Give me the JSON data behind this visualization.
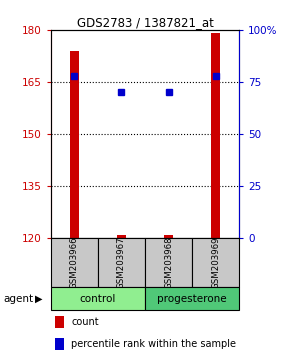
{
  "title": "GDS2783 / 1387821_at",
  "samples": [
    "GSM203966",
    "GSM203967",
    "GSM203968",
    "GSM203969"
  ],
  "count_values": [
    174,
    121,
    121,
    179
  ],
  "percentile_values": [
    78,
    70,
    70,
    78
  ],
  "ylim_left": [
    120,
    180
  ],
  "ylim_right": [
    0,
    100
  ],
  "yticks_left": [
    120,
    135,
    150,
    165,
    180
  ],
  "yticks_right": [
    0,
    25,
    50,
    75,
    100
  ],
  "ytick_labels_right": [
    "0",
    "25",
    "50",
    "75",
    "100%"
  ],
  "groups": [
    {
      "label": "control",
      "samples": [
        0,
        1
      ],
      "color": "#90EE90"
    },
    {
      "label": "progesterone",
      "samples": [
        2,
        3
      ],
      "color": "#50C878"
    }
  ],
  "bar_color": "#CC0000",
  "dot_color": "#0000CC",
  "axis_left_color": "#CC0000",
  "axis_right_color": "#0000CC",
  "sample_box_color": "#C8C8C8",
  "legend_count_color": "#CC0000",
  "legend_pct_color": "#0000CC",
  "gridline_color": "black",
  "gridline_style": ":",
  "gridline_ticks": [
    135,
    150,
    165
  ]
}
